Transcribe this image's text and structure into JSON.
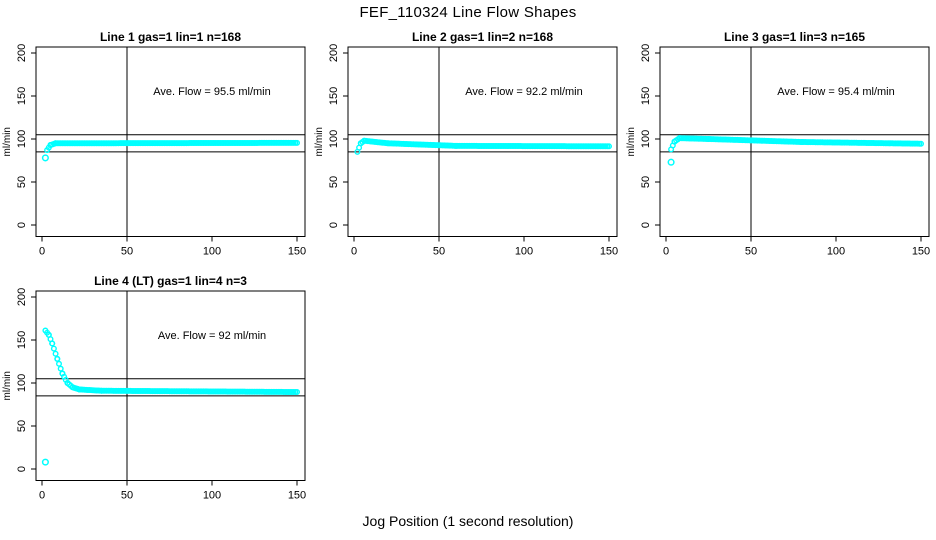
{
  "page": {
    "title": "FEF_110324  Line Flow Shapes",
    "xlabel": "Jog Position (1 second resolution)"
  },
  "style": {
    "point_color": "#00FFFF",
    "axis_color": "#000000",
    "background": "#FFFFFF"
  },
  "chart_data": [
    {
      "type": "scatter",
      "title": "Line 1 gas=1 lin=1 n=168",
      "annotation": "Ave. Flow =  95.5  ml/min",
      "ave_flow_ml_min": 95.5,
      "n": 168,
      "ylabel": "ml/min",
      "xlim": [
        0,
        150
      ],
      "ylim": [
        0,
        200
      ],
      "xticks": [
        0,
        50,
        100,
        150
      ],
      "yticks": [
        0,
        50,
        100,
        150,
        200
      ],
      "ref_lines_y": [
        85,
        105
      ],
      "ref_line_x": 50,
      "outliers": [
        [
          2,
          78
        ]
      ],
      "runs": [
        [
          3,
          87,
          5,
          93
        ],
        [
          5,
          93,
          8,
          95
        ],
        [
          8,
          95,
          150,
          95.5
        ]
      ]
    },
    {
      "type": "scatter",
      "title": "Line 2 gas=1 lin=2 n=168",
      "annotation": "Ave. Flow =  92.2  ml/min",
      "ave_flow_ml_min": 92.2,
      "n": 168,
      "ylabel": "ml/min",
      "xlim": [
        0,
        150
      ],
      "ylim": [
        0,
        200
      ],
      "xticks": [
        0,
        50,
        100,
        150
      ],
      "yticks": [
        0,
        50,
        100,
        150,
        200
      ],
      "ref_lines_y": [
        85,
        105
      ],
      "ref_line_x": 50,
      "outliers": [],
      "runs": [
        [
          2,
          85,
          4,
          95
        ],
        [
          4,
          95,
          6,
          98
        ],
        [
          6,
          98,
          20,
          95
        ],
        [
          20,
          95,
          60,
          92
        ],
        [
          60,
          92,
          150,
          91.5
        ]
      ]
    },
    {
      "type": "scatter",
      "title": "Line 3 gas=1 lin=3 n=165",
      "annotation": "Ave. Flow =  95.4  ml/min",
      "ave_flow_ml_min": 95.4,
      "n": 165,
      "ylabel": "ml/min",
      "xlim": [
        0,
        150
      ],
      "ylim": [
        0,
        200
      ],
      "xticks": [
        0,
        50,
        100,
        150
      ],
      "yticks": [
        0,
        50,
        100,
        150,
        200
      ],
      "ref_lines_y": [
        85,
        105
      ],
      "ref_line_x": 50,
      "outliers": [
        [
          3,
          73
        ]
      ],
      "runs": [
        [
          3,
          88,
          5,
          97
        ],
        [
          5,
          97,
          8,
          101
        ],
        [
          8,
          101,
          25,
          100
        ],
        [
          25,
          100,
          80,
          96.5
        ],
        [
          80,
          96.5,
          150,
          94.5
        ]
      ]
    },
    {
      "type": "scatter",
      "title": "Line 4 (LT) gas=1 lin=4 n=3",
      "annotation": "Ave. Flow =  92  ml/min",
      "ave_flow_ml_min": 92,
      "n": 3,
      "ylabel": "ml/min",
      "xlim": [
        0,
        150
      ],
      "ylim": [
        0,
        200
      ],
      "xticks": [
        0,
        50,
        100,
        150
      ],
      "yticks": [
        0,
        50,
        100,
        150,
        200
      ],
      "ref_lines_y": [
        85,
        105
      ],
      "ref_line_x": 50,
      "outliers": [
        [
          2,
          8
        ]
      ],
      "runs": [
        [
          2,
          161,
          4,
          156
        ],
        [
          4,
          156,
          6,
          146
        ],
        [
          6,
          146,
          9,
          128
        ],
        [
          9,
          128,
          12,
          111
        ],
        [
          12,
          111,
          15,
          100
        ],
        [
          15,
          100,
          18,
          95
        ],
        [
          18,
          95,
          22,
          92.5
        ],
        [
          22,
          92.5,
          35,
          91
        ],
        [
          35,
          91,
          150,
          89.5
        ]
      ]
    }
  ]
}
